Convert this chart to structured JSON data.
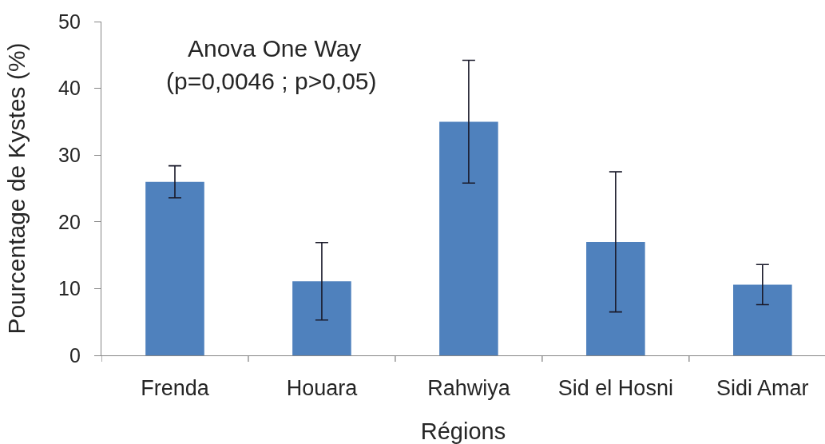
{
  "chart_data": {
    "type": "bar",
    "categories": [
      "Frenda",
      "Houara",
      "Rahwiya",
      "Sid el Hosni",
      "Sidi Amar"
    ],
    "values": [
      26,
      11.1,
      35,
      17,
      10.6
    ],
    "errors": [
      2.4,
      5.8,
      9.2,
      10.5,
      3.0
    ],
    "color": "#4f81bd",
    "xlabel": "Régions",
    "ylabel": "Pourcentage de Kystes (%)",
    "ylim": [
      0,
      50
    ],
    "yticks": [
      0,
      10,
      20,
      30,
      40,
      50
    ],
    "annotations": [
      "Anova One Way",
      "(p=0,0046 ; p>0,05)"
    ]
  }
}
